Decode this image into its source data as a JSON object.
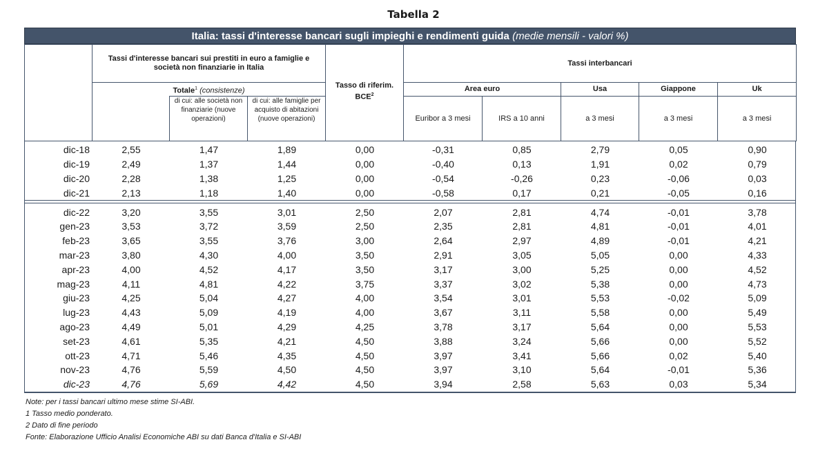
{
  "title": "Tabella 2",
  "banner": {
    "title": "Italia: tassi d'interesse bancari sugli impieghi e rendimenti guida",
    "subtitle": "(medie mensili - valori %)"
  },
  "header": {
    "group_bank_line1": "Tassi d'interesse bancari sui prestiti in euro a famiglie e",
    "group_bank_line2": "società non finanziarie in Italia",
    "totale": "Totale",
    "totale_sup": "1",
    "totale_note": "(consistenze)",
    "sub_societa_1": "di cui: alle società non",
    "sub_societa_2": "finanziarie (nuove",
    "sub_societa_3": "operazioni)",
    "sub_famiglie_1": "di cui: alle famiglie per",
    "sub_famiglie_2": "acquisto di abitazioni",
    "sub_famiglie_3": "(nuove operazioni)",
    "bce_line1": "Tasso di riferim.",
    "bce_line2": "BCE",
    "bce_sup": "2",
    "interbank": "Tassi interbancari",
    "area_euro": "Area euro",
    "usa": "Usa",
    "giappone": "Giappone",
    "uk": "Uk",
    "euribor": "Euribor a 3 mesi",
    "irs": "IRS a 10 anni",
    "usa_sub": "a 3 mesi",
    "giappone_sub": "a 3 mesi",
    "uk_sub": "a 3 mesi"
  },
  "rows_annual": [
    [
      "dic-18",
      "2,55",
      "1,47",
      "1,89",
      "0,00",
      "-0,31",
      "0,85",
      "2,79",
      "0,05",
      "0,90"
    ],
    [
      "dic-19",
      "2,49",
      "1,37",
      "1,44",
      "0,00",
      "-0,40",
      "0,13",
      "1,91",
      "0,02",
      "0,79"
    ],
    [
      "dic-20",
      "2,28",
      "1,38",
      "1,25",
      "0,00",
      "-0,54",
      "-0,26",
      "0,23",
      "-0,06",
      "0,03"
    ],
    [
      "dic-21",
      "2,13",
      "1,18",
      "1,40",
      "0,00",
      "-0,58",
      "0,17",
      "0,21",
      "-0,05",
      "0,16"
    ]
  ],
  "rows_monthly": [
    [
      "dic-22",
      "3,20",
      "3,55",
      "3,01",
      "2,50",
      "2,07",
      "2,81",
      "4,74",
      "-0,01",
      "3,78"
    ],
    [
      "gen-23",
      "3,53",
      "3,72",
      "3,59",
      "2,50",
      "2,35",
      "2,81",
      "4,81",
      "-0,01",
      "4,01"
    ],
    [
      "feb-23",
      "3,65",
      "3,55",
      "3,76",
      "3,00",
      "2,64",
      "2,97",
      "4,89",
      "-0,01",
      "4,21"
    ],
    [
      "mar-23",
      "3,80",
      "4,30",
      "4,00",
      "3,50",
      "2,91",
      "3,05",
      "5,05",
      "0,00",
      "4,33"
    ],
    [
      "apr-23",
      "4,00",
      "4,52",
      "4,17",
      "3,50",
      "3,17",
      "3,00",
      "5,25",
      "0,00",
      "4,52"
    ],
    [
      "mag-23",
      "4,11",
      "4,81",
      "4,22",
      "3,75",
      "3,37",
      "3,02",
      "5,38",
      "0,00",
      "4,73"
    ],
    [
      "giu-23",
      "4,25",
      "5,04",
      "4,27",
      "4,00",
      "3,54",
      "3,01",
      "5,53",
      "-0,02",
      "5,09"
    ],
    [
      "lug-23",
      "4,43",
      "5,09",
      "4,19",
      "4,00",
      "3,67",
      "3,11",
      "5,58",
      "0,00",
      "5,49"
    ],
    [
      "ago-23",
      "4,49",
      "5,01",
      "4,29",
      "4,25",
      "3,78",
      "3,17",
      "5,64",
      "0,00",
      "5,53"
    ],
    [
      "set-23",
      "4,61",
      "5,35",
      "4,21",
      "4,50",
      "3,88",
      "3,24",
      "5,66",
      "0,00",
      "5,52"
    ],
    [
      "ott-23",
      "4,71",
      "5,46",
      "4,35",
      "4,50",
      "3,97",
      "3,41",
      "5,66",
      "0,02",
      "5,40"
    ],
    [
      "nov-23",
      "4,76",
      "5,59",
      "4,50",
      "4,50",
      "3,97",
      "3,10",
      "5,64",
      "-0,01",
      "5,36"
    ],
    [
      "dic-23",
      "4,76",
      "5,69",
      "4,42",
      "4,50",
      "3,94",
      "2,58",
      "5,63",
      "0,03",
      "5,34"
    ]
  ],
  "italic_row_last": true,
  "notes": [
    "Note: per i tassi bancari ultimo mese stime SI-ABI.",
    "1 Tasso medio ponderato.",
    "2 Dato di fine periodo",
    "Fonte: Elaborazione Ufficio Analisi Economiche ABI su dati Banca d'Italia e SI-ABI"
  ]
}
